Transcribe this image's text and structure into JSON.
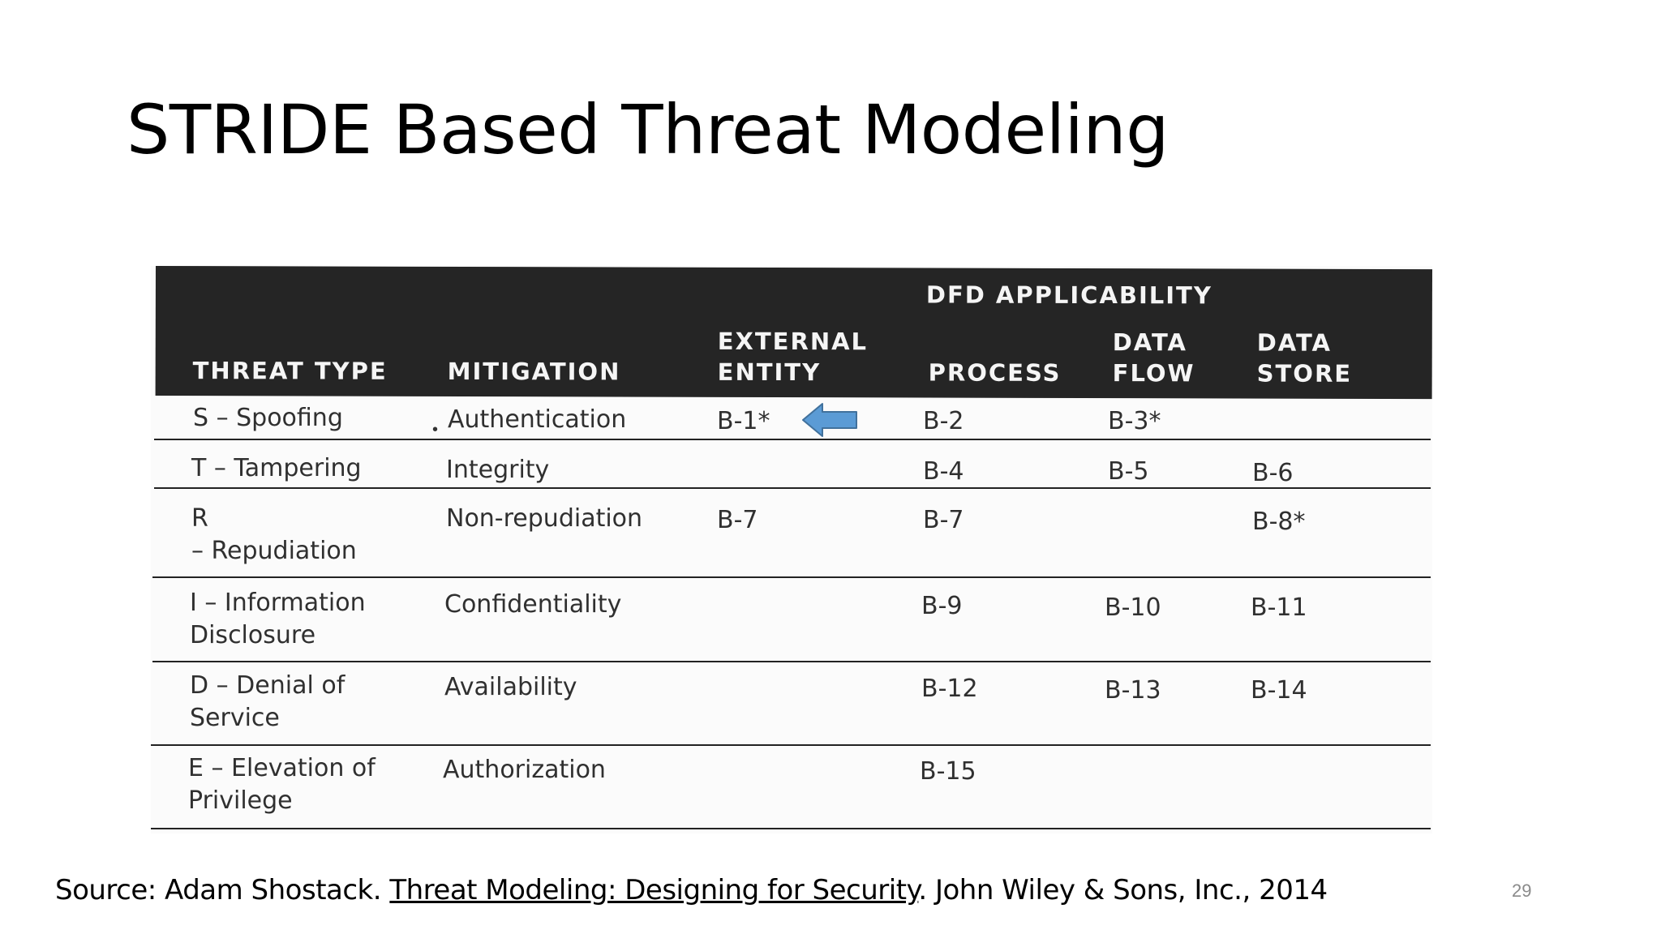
{
  "slide": {
    "title": "STRIDE Based Threat Modeling",
    "page_number": "29"
  },
  "table": {
    "group_header": "DFD APPLICABILITY",
    "columns": {
      "threat_type": "THREAT TYPE",
      "mitigation": "MITIGATION",
      "external_entity": "EXTERNAL\nENTITY",
      "process": "PROCESS",
      "data_flow": "DATA\nFLOW",
      "data_store": "DATA\nSTORE"
    },
    "rows": [
      {
        "threat_type": "S – Spoofing",
        "mitigation": "Authentication",
        "external_entity": "B-1*",
        "process": "B-2",
        "data_flow": "B-3*",
        "data_store": ""
      },
      {
        "threat_type": "T – Tampering",
        "mitigation": "Integrity",
        "external_entity": "",
        "process": "B-4",
        "data_flow": "B-5",
        "data_store": "B-6"
      },
      {
        "threat_type": "R\n– Repudiation",
        "mitigation": "Non-repudiation",
        "external_entity": "B-7",
        "process": "B-7",
        "data_flow": "",
        "data_store": "B-8*"
      },
      {
        "threat_type": "I – Information\nDisclosure",
        "mitigation": "Confidentiality",
        "external_entity": "",
        "process": "B-9",
        "data_flow": "B-10",
        "data_store": "B-11"
      },
      {
        "threat_type": "D – Denial of\nService",
        "mitigation": "Availability",
        "external_entity": "",
        "process": "B-12",
        "data_flow": "B-13",
        "data_store": "B-14"
      },
      {
        "threat_type": "E – Elevation of\nPrivilege",
        "mitigation": "Authorization",
        "external_entity": "",
        "process": "B-15",
        "data_flow": "",
        "data_store": ""
      }
    ]
  },
  "annotation": {
    "arrow_icon": "left-arrow-icon",
    "arrow_color": "#5b9bd5"
  },
  "source": {
    "prefix": "Source: Adam Shostack. ",
    "book_title": "Threat Modeling: Designing for Security",
    "suffix": ". John Wiley & Sons, Inc., 2014"
  }
}
